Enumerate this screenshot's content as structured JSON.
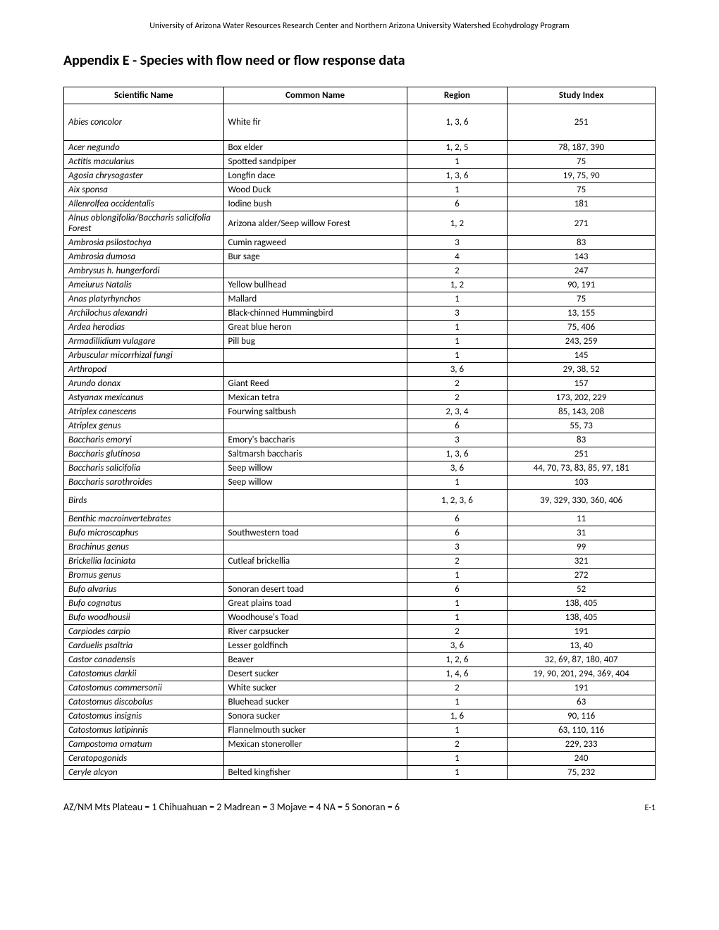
{
  "header": "University of Arizona Water Resources Research Center and Northern Arizona University Watershed Ecohydrology Program",
  "title": "Appendix E - Species with flow need or flow response data",
  "columns": [
    "Scientific Name",
    "Common Name",
    "Region",
    "Study Index"
  ],
  "rows": [
    {
      "sci": "Abies concolor",
      "common": "White fir",
      "region": "1, 3, 6",
      "study": "251",
      "rowClass": "tall-row"
    },
    {
      "sci": "Acer negundo",
      "common": "Box elder",
      "region": "1, 2, 5",
      "study": "78, 187, 390"
    },
    {
      "sci": "Actitis macularius",
      "common": "Spotted sandpiper",
      "region": "1",
      "study": "75"
    },
    {
      "sci": "Agosia chrysogaster",
      "common": "Longfin dace",
      "region": "1, 3, 6",
      "study": "19, 75, 90"
    },
    {
      "sci": "Aix sponsa",
      "common": "Wood Duck",
      "region": "1",
      "study": "75"
    },
    {
      "sci": "Allenrolfea occidentalis",
      "common": "Iodine bush",
      "region": "6",
      "study": "181"
    },
    {
      "sci": "Alnus oblongifolia/Baccharis salicifolia Forest",
      "common": "Arizona alder/Seep willow Forest",
      "region": "1, 2",
      "study": "271"
    },
    {
      "sci": "Ambrosia psilostochya",
      "common": "Cumin ragweed",
      "region": "3",
      "study": "83"
    },
    {
      "sci": "Ambrosia dumosa",
      "common": "Bur sage",
      "region": "4",
      "study": "143"
    },
    {
      "sci": "Ambrysus h. hungerfordi",
      "common": "",
      "region": "2",
      "study": "247"
    },
    {
      "sci": "Ameiurus Natalis",
      "common": "Yellow bullhead",
      "region": "1, 2",
      "study": "90, 191"
    },
    {
      "sci": "Anas platyrhynchos",
      "common": "Mallard",
      "region": "1",
      "study": "75"
    },
    {
      "sci": "Archilochus alexandri",
      "common": "Black-chinned Hummingbird",
      "region": "3",
      "study": "13, 155"
    },
    {
      "sci": "Ardea herodias",
      "common": "Great blue heron",
      "region": "1",
      "study": "75,  406"
    },
    {
      "sci": "Armadillidium vulagare",
      "common": "Pill bug",
      "region": "1",
      "study": "243, 259"
    },
    {
      "sci": "Arbuscular micorrhizal fungi",
      "common": "",
      "region": "1",
      "study": "145"
    },
    {
      "sci": "Arthropod",
      "common": "",
      "region": "3, 6",
      "study": "29, 38, 52"
    },
    {
      "sci": "Arundo donax",
      "common": "Giant Reed",
      "region": "2",
      "study": "157"
    },
    {
      "sci": "Astyanax mexicanus",
      "common": "Mexican tetra",
      "region": "2",
      "study": "173, 202, 229"
    },
    {
      "sci": "Atriplex canescens",
      "common": "Fourwing saltbush",
      "region": "2, 3, 4",
      "study": "85, 143, 208"
    },
    {
      "sci": "Atriplex genus",
      "common": "",
      "region": "6",
      "study": "55, 73"
    },
    {
      "sci": "Baccharis emoryi",
      "common": "Emory's baccharis",
      "region": "3",
      "study": "83"
    },
    {
      "sci": "Baccharis glutinosa",
      "common": "Saltmarsh baccharis",
      "region": "1, 3, 6",
      "study": "251"
    },
    {
      "sci": "Baccharis salicifolia",
      "common": "Seep willow",
      "region": "3, 6",
      "study": "44, 70, 73, 83, 85, 97, 181"
    },
    {
      "sci": "Baccharis sarothroides",
      "common": "Seep willow",
      "region": "1",
      "study": "103"
    },
    {
      "sci": "Birds",
      "common": "",
      "region": "1, 2, 3, 6",
      "study": "39, 329, 330, 360, 406",
      "rowClass": "med-row"
    },
    {
      "sci": "Benthic macroinvertebrates",
      "common": "",
      "region": "6",
      "study": "11"
    },
    {
      "sci": "Bufo microscaphus",
      "common": "Southwestern toad",
      "region": "6",
      "study": "31"
    },
    {
      "sci": "Brachinus genus",
      "common": "",
      "region": "3",
      "study": "99"
    },
    {
      "sci": "Brickellia laciniata",
      "common": "Cutleaf brickellia",
      "region": "2",
      "study": "321"
    },
    {
      "sci": "Bromus genus",
      "common": "",
      "region": "1",
      "study": "272"
    },
    {
      "sci": "Bufo alvarius",
      "common": "Sonoran desert toad",
      "region": "6",
      "study": "52"
    },
    {
      "sci": "Bufo cognatus",
      "common": "Great plains toad",
      "region": "1",
      "study": "138, 405"
    },
    {
      "sci": "Bufo woodhousii",
      "common": "Woodhouse's Toad",
      "region": "1",
      "study": "138, 405"
    },
    {
      "sci": "Carpiodes carpio",
      "common": "River carpsucker",
      "region": "2",
      "study": "191"
    },
    {
      "sci": "Carduelis psaltria",
      "common": "Lesser goldfinch",
      "region": "3, 6",
      "study": "13, 40"
    },
    {
      "sci": "Castor canadensis",
      "common": "Beaver",
      "region": "1, 2, 6",
      "study": "32, 69, 87, 180, 407"
    },
    {
      "sci": "Catostomus clarkii",
      "common": "Desert sucker",
      "region": "1, 4, 6",
      "study": "19, 90, 201, 294, 369, 404"
    },
    {
      "sci": "Catostomus commersonii",
      "common": "White sucker",
      "region": "2",
      "study": "191"
    },
    {
      "sci": "Catostomus discobolus",
      "common": "Bluehead sucker",
      "region": "1",
      "study": "63"
    },
    {
      "sci": "Catostomus insignis",
      "common": "Sonora sucker",
      "region": "1, 6",
      "study": "90, 116"
    },
    {
      "sci": "Catostomus latipinnis",
      "common": "Flannelmouth sucker",
      "region": "1",
      "study": "63, 110, 116"
    },
    {
      "sci": "Campostoma ornatum",
      "common": "Mexican stoneroller",
      "region": "2",
      "study": "229, 233"
    },
    {
      "sci": "Ceratopogonids",
      "common": "",
      "region": "1",
      "study": "240"
    },
    {
      "sci": "Ceryle alcyon",
      "common": "Belted kingfisher",
      "region": "1",
      "study": "75, 232"
    }
  ],
  "footer": {
    "left": "AZ/NM Mts Plateau = 1   Chihuahuan = 2  Madrean = 3 Mojave = 4  NA = 5  Sonoran = 6",
    "right": "E-1"
  }
}
